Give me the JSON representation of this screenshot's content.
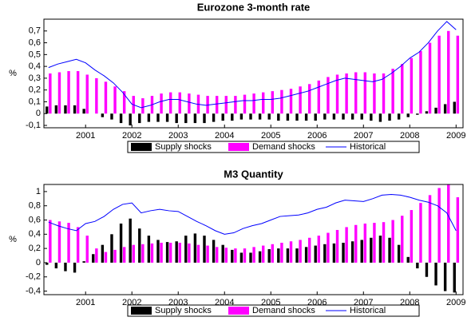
{
  "chart_data": [
    {
      "type": "bar",
      "title": "Eurozone 3-month rate",
      "ylabel": "%",
      "legend": "bottom",
      "x": [
        2000.2,
        2000.4,
        2000.6,
        2000.8,
        2001.0,
        2001.2,
        2001.4,
        2001.6,
        2001.8,
        2002.0,
        2002.2,
        2002.4,
        2002.6,
        2002.8,
        2003.0,
        2003.2,
        2003.4,
        2003.6,
        2003.8,
        2004.0,
        2004.2,
        2004.4,
        2004.6,
        2004.8,
        2005.0,
        2005.2,
        2005.4,
        2005.6,
        2005.8,
        2006.0,
        2006.2,
        2006.4,
        2006.6,
        2006.8,
        2007.0,
        2007.2,
        2007.4,
        2007.6,
        2007.8,
        2008.0,
        2008.2,
        2008.4,
        2008.6,
        2008.8,
        2009.0
      ],
      "series": [
        {
          "name": "Supply shocks",
          "color": "#000000",
          "kind": "bar",
          "values": [
            0.06,
            0.07,
            0.07,
            0.07,
            0.04,
            0.0,
            -0.03,
            -0.05,
            -0.08,
            -0.1,
            -0.08,
            -0.07,
            -0.07,
            -0.07,
            -0.08,
            -0.08,
            -0.08,
            -0.08,
            -0.07,
            -0.06,
            -0.06,
            -0.05,
            -0.05,
            -0.05,
            -0.05,
            -0.06,
            -0.06,
            -0.06,
            -0.06,
            -0.06,
            -0.05,
            -0.05,
            -0.05,
            -0.05,
            -0.05,
            -0.06,
            -0.07,
            -0.06,
            -0.05,
            -0.03,
            -0.01,
            0.02,
            0.05,
            0.08,
            0.1
          ]
        },
        {
          "name": "Demand shocks",
          "color": "#ff00ff",
          "kind": "bar",
          "values": [
            0.34,
            0.35,
            0.36,
            0.36,
            0.33,
            0.3,
            0.27,
            0.23,
            0.19,
            0.15,
            0.13,
            0.15,
            0.17,
            0.18,
            0.18,
            0.17,
            0.16,
            0.15,
            0.15,
            0.15,
            0.15,
            0.16,
            0.17,
            0.18,
            0.19,
            0.2,
            0.21,
            0.23,
            0.25,
            0.28,
            0.31,
            0.33,
            0.34,
            0.35,
            0.35,
            0.34,
            0.34,
            0.38,
            0.42,
            0.47,
            0.53,
            0.6,
            0.66,
            0.7,
            0.66
          ]
        },
        {
          "name": "Historical",
          "color": "#0000ff",
          "kind": "line",
          "values": [
            0.39,
            0.42,
            0.44,
            0.46,
            0.43,
            0.37,
            0.32,
            0.26,
            0.18,
            0.08,
            0.05,
            0.07,
            0.1,
            0.12,
            0.12,
            0.1,
            0.08,
            0.07,
            0.08,
            0.09,
            0.1,
            0.11,
            0.11,
            0.12,
            0.12,
            0.13,
            0.15,
            0.17,
            0.19,
            0.22,
            0.25,
            0.28,
            0.3,
            0.29,
            0.28,
            0.27,
            0.29,
            0.34,
            0.4,
            0.47,
            0.52,
            0.6,
            0.7,
            0.78,
            0.71
          ]
        }
      ],
      "xlim": [
        2000.1,
        2009.15
      ],
      "xticks": [
        2001,
        2002,
        2003,
        2004,
        2005,
        2006,
        2007,
        2008,
        2009
      ],
      "ylim": [
        -0.12,
        0.8
      ],
      "yticks": [
        {
          "value": -0.1,
          "label": "-0,1"
        },
        0,
        {
          "value": 0.1,
          "label": "0,1"
        },
        {
          "value": 0.2,
          "label": "0,2"
        },
        {
          "value": 0.3,
          "label": "0,3"
        },
        {
          "value": 0.4,
          "label": "0,4"
        },
        {
          "value": 0.5,
          "label": "0,5"
        },
        {
          "value": 0.6,
          "label": "0,6"
        },
        {
          "value": 0.7,
          "label": "0,7"
        }
      ]
    },
    {
      "type": "bar",
      "title": "M3 Quantity",
      "ylabel": "%",
      "legend": "bottom",
      "x": [
        2000.2,
        2000.4,
        2000.6,
        2000.8,
        2001.0,
        2001.2,
        2001.4,
        2001.6,
        2001.8,
        2002.0,
        2002.2,
        2002.4,
        2002.6,
        2002.8,
        2003.0,
        2003.2,
        2003.4,
        2003.6,
        2003.8,
        2004.0,
        2004.2,
        2004.4,
        2004.6,
        2004.8,
        2005.0,
        2005.2,
        2005.4,
        2005.6,
        2005.8,
        2006.0,
        2006.2,
        2006.4,
        2006.6,
        2006.8,
        2007.0,
        2007.2,
        2007.4,
        2007.6,
        2007.8,
        2008.0,
        2008.2,
        2008.4,
        2008.6,
        2008.8,
        2009.0
      ],
      "series": [
        {
          "name": "Supply shocks",
          "color": "#000000",
          "kind": "bar",
          "values": [
            -0.03,
            -0.08,
            -0.12,
            -0.14,
            0.02,
            0.12,
            0.25,
            0.4,
            0.55,
            0.62,
            0.48,
            0.38,
            0.32,
            0.29,
            0.3,
            0.38,
            0.41,
            0.38,
            0.32,
            0.25,
            0.18,
            0.14,
            0.14,
            0.16,
            0.19,
            0.2,
            0.2,
            0.2,
            0.22,
            0.24,
            0.26,
            0.27,
            0.28,
            0.3,
            0.32,
            0.35,
            0.38,
            0.35,
            0.25,
            0.08,
            -0.08,
            -0.2,
            -0.32,
            -0.4,
            -0.42
          ]
        },
        {
          "name": "Demand shocks",
          "color": "#ff00ff",
          "kind": "bar",
          "values": [
            0.6,
            0.58,
            0.56,
            0.5,
            0.38,
            0.2,
            0.15,
            0.18,
            0.22,
            0.25,
            0.26,
            0.27,
            0.28,
            0.28,
            0.28,
            0.27,
            0.25,
            0.24,
            0.22,
            0.21,
            0.2,
            0.2,
            0.22,
            0.24,
            0.26,
            0.28,
            0.3,
            0.32,
            0.35,
            0.38,
            0.42,
            0.46,
            0.5,
            0.53,
            0.55,
            0.56,
            0.57,
            0.6,
            0.66,
            0.74,
            0.84,
            0.95,
            1.05,
            1.1,
            0.92
          ]
        },
        {
          "name": "Historical",
          "color": "#0000ff",
          "kind": "line",
          "values": [
            0.57,
            0.52,
            0.48,
            0.45,
            0.55,
            0.58,
            0.65,
            0.75,
            0.82,
            0.84,
            0.7,
            0.73,
            0.75,
            0.73,
            0.72,
            0.65,
            0.58,
            0.52,
            0.45,
            0.4,
            0.42,
            0.48,
            0.52,
            0.55,
            0.6,
            0.65,
            0.66,
            0.67,
            0.7,
            0.75,
            0.78,
            0.84,
            0.88,
            0.87,
            0.86,
            0.9,
            0.95,
            0.96,
            0.95,
            0.92,
            0.88,
            0.85,
            0.8,
            0.7,
            0.45
          ]
        }
      ],
      "xlim": [
        2000.1,
        2009.15
      ],
      "xticks": [
        2001,
        2002,
        2003,
        2004,
        2005,
        2006,
        2007,
        2008,
        2009
      ],
      "ylim": [
        -0.45,
        1.1
      ],
      "yticks": [
        {
          "value": -0.4,
          "label": "-0,4"
        },
        {
          "value": -0.2,
          "label": "-0,2"
        },
        0,
        {
          "value": 0.2,
          "label": "0,2"
        },
        {
          "value": 0.4,
          "label": "0,4"
        },
        {
          "value": 0.6,
          "label": "0,6"
        },
        {
          "value": 0.8,
          "label": "0,8"
        },
        1
      ]
    }
  ]
}
